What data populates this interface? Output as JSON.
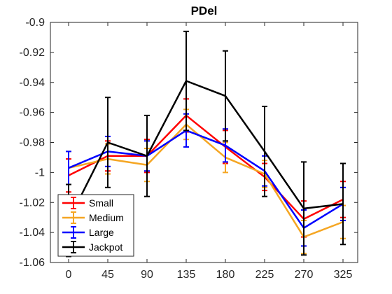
{
  "chart_data": {
    "type": "line",
    "title": "PDel",
    "xlabel": "",
    "ylabel": "",
    "x": [
      0,
      45,
      90,
      135,
      180,
      225,
      270,
      325
    ],
    "x_tick_labels": [
      "0",
      "45",
      "90",
      "135",
      "180",
      "225",
      "270",
      "325"
    ],
    "ylim": [
      -1.06,
      -0.9
    ],
    "y_ticks": [
      -1.06,
      -1.04,
      -1.02,
      -1,
      -0.98,
      -0.96,
      -0.94,
      -0.92,
      -0.9
    ],
    "y_tick_labels": [
      "-1.06",
      "-1.04",
      "-1.02",
      "-1",
      "-0.98",
      "-0.96",
      "-0.94",
      "-0.92",
      "-0.9"
    ],
    "grid": false,
    "legend_position": "bottom-left",
    "series": [
      {
        "name": "Small",
        "color": "#ff0000",
        "values": [
          -1.002,
          -0.989,
          -0.989,
          -0.962,
          -0.983,
          -1.003,
          -1.031,
          -1.018
        ],
        "errors": [
          0.011,
          0.01,
          0.011,
          0.011,
          0.011,
          0.009,
          0.012,
          0.012
        ]
      },
      {
        "name": "Medium",
        "color": "#f5a623",
        "values": [
          -0.997,
          -0.991,
          -0.995,
          -0.968,
          -0.99,
          -1.001,
          -1.043,
          -1.033
        ],
        "errors": [
          0.011,
          0.01,
          0.011,
          0.01,
          0.01,
          0.009,
          0.011,
          0.011
        ]
      },
      {
        "name": "Large",
        "color": "#0000ff",
        "values": [
          -0.997,
          -0.986,
          -0.989,
          -0.972,
          -0.982,
          -0.999,
          -1.037,
          -1.021
        ],
        "errors": [
          0.011,
          0.01,
          0.01,
          0.011,
          0.011,
          0.01,
          0.012,
          0.011
        ]
      },
      {
        "name": "Jackpot",
        "color": "#000000",
        "values": [
          -1.032,
          -0.98,
          -0.989,
          -0.939,
          -0.949,
          -0.986,
          -1.024,
          -1.021
        ],
        "errors": [
          0.024,
          0.03,
          0.027,
          0.033,
          0.03,
          0.03,
          0.031,
          0.027
        ]
      }
    ]
  }
}
